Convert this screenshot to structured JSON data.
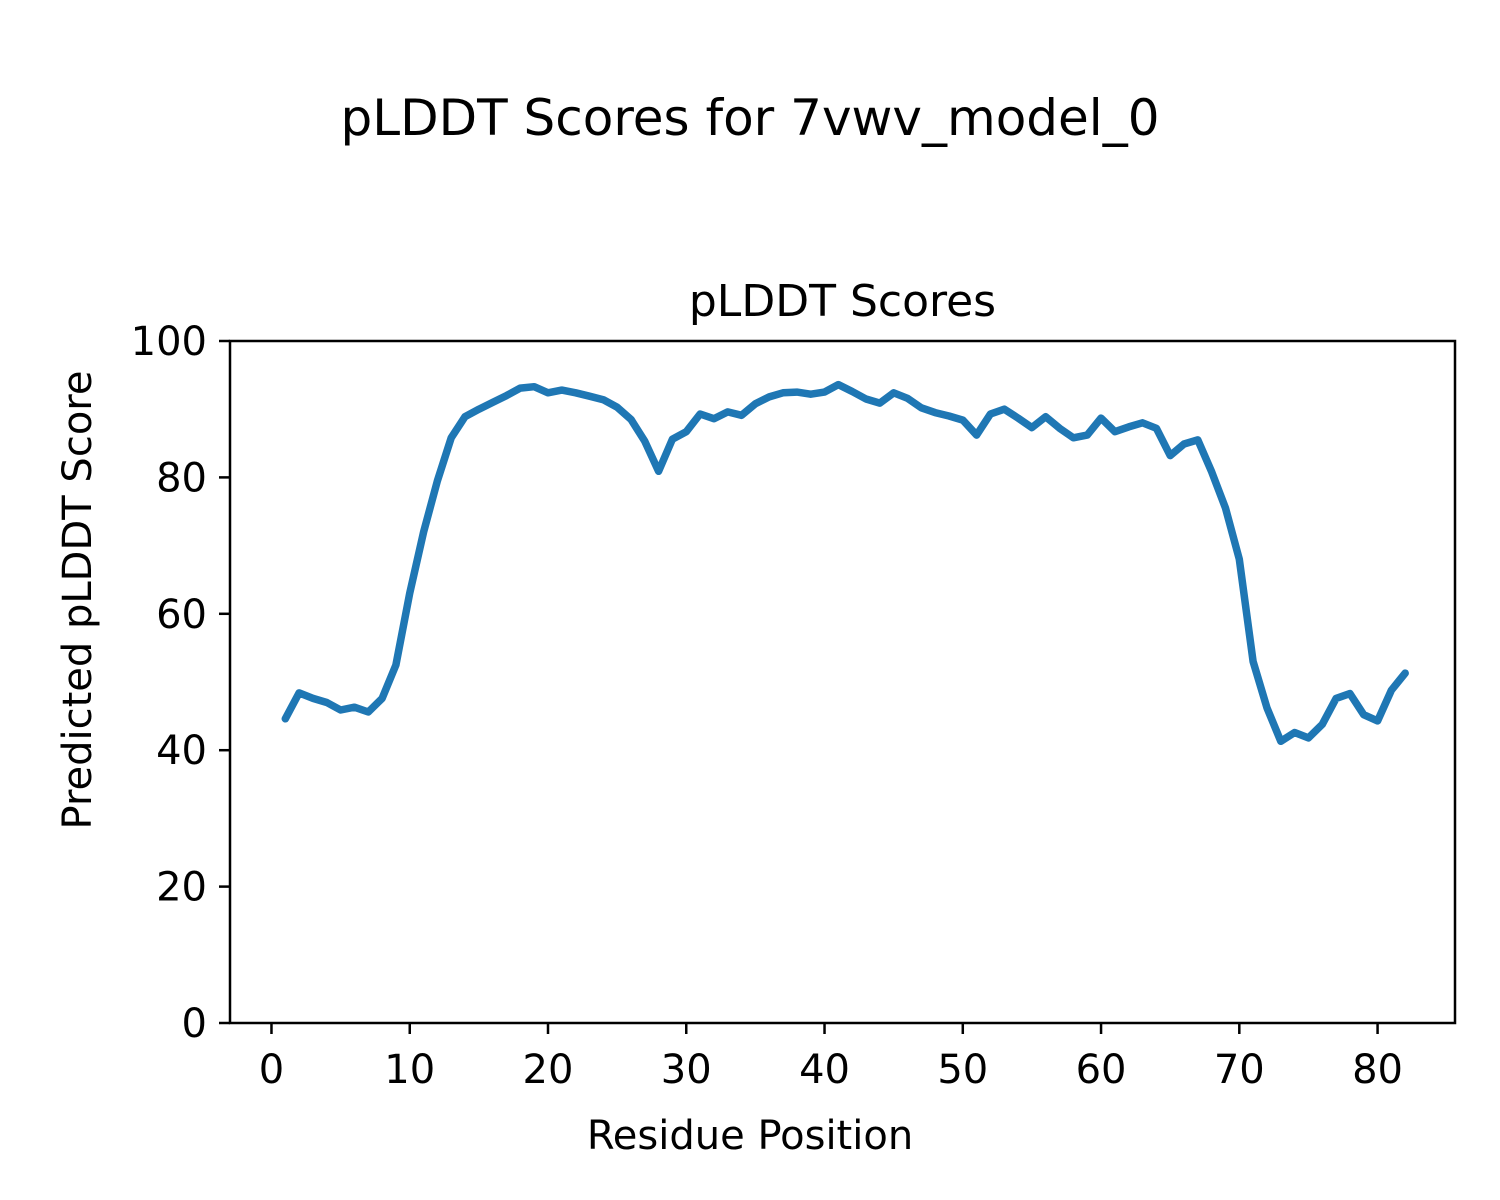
{
  "figure": {
    "suptitle": "pLDDT Scores for 7vwv_model_0",
    "axes_title": "pLDDT Scores",
    "xlabel": "Residue Position",
    "ylabel": "Predicted pLDDT Score"
  },
  "chart_data": {
    "type": "line",
    "title": "pLDDT Scores",
    "suptitle": "pLDDT Scores for 7vwv_model_0",
    "xlabel": "Residue Position",
    "ylabel": "Predicted pLDDT Score",
    "xlim": [
      -3,
      85.6
    ],
    "ylim": [
      0,
      100
    ],
    "x_ticks": [
      0,
      10,
      20,
      30,
      40,
      50,
      60,
      70,
      80
    ],
    "y_ticks": [
      0,
      20,
      40,
      60,
      80,
      100
    ],
    "grid": false,
    "legend_position": "none",
    "line_color": "#1f77b4",
    "background_color": "#ffffff",
    "series": [
      {
        "name": "pLDDT",
        "x": [
          1,
          2,
          3,
          4,
          5,
          6,
          7,
          8,
          9,
          10,
          11,
          12,
          13,
          14,
          15,
          16,
          17,
          18,
          19,
          20,
          21,
          22,
          23,
          24,
          25,
          26,
          27,
          28,
          29,
          30,
          31,
          32,
          33,
          34,
          35,
          36,
          37,
          38,
          39,
          40,
          41,
          42,
          43,
          44,
          45,
          46,
          47,
          48,
          49,
          50,
          51,
          52,
          53,
          54,
          55,
          56,
          57,
          58,
          59,
          60,
          61,
          62,
          63,
          64,
          65,
          66,
          67,
          68,
          69,
          70,
          71,
          72,
          73,
          74,
          75,
          76,
          77,
          78,
          79,
          80,
          81,
          82
        ],
        "values": [
          44.6,
          48.4,
          47.6,
          47.0,
          45.9,
          46.3,
          45.6,
          47.6,
          52.5,
          63.0,
          72.0,
          79.5,
          85.8,
          88.9,
          90.0,
          91.0,
          92.0,
          93.1,
          93.3,
          92.4,
          92.8,
          92.4,
          91.9,
          91.4,
          90.3,
          88.5,
          85.3,
          80.9,
          85.6,
          86.7,
          89.3,
          88.6,
          89.6,
          89.1,
          90.8,
          91.8,
          92.4,
          92.5,
          92.2,
          92.5,
          93.6,
          92.6,
          91.5,
          90.9,
          92.4,
          91.6,
          90.2,
          89.5,
          89.0,
          88.4,
          86.2,
          89.3,
          90.0,
          88.7,
          87.3,
          88.9,
          87.2,
          85.8,
          86.2,
          88.7,
          86.7,
          87.4,
          88.0,
          87.2,
          83.2,
          84.9,
          85.5,
          80.8,
          75.5,
          68.0,
          53.0,
          46.2,
          41.3,
          42.6,
          41.8,
          43.8,
          47.6,
          48.3,
          45.2,
          44.3,
          48.8,
          51.3
        ]
      }
    ]
  }
}
